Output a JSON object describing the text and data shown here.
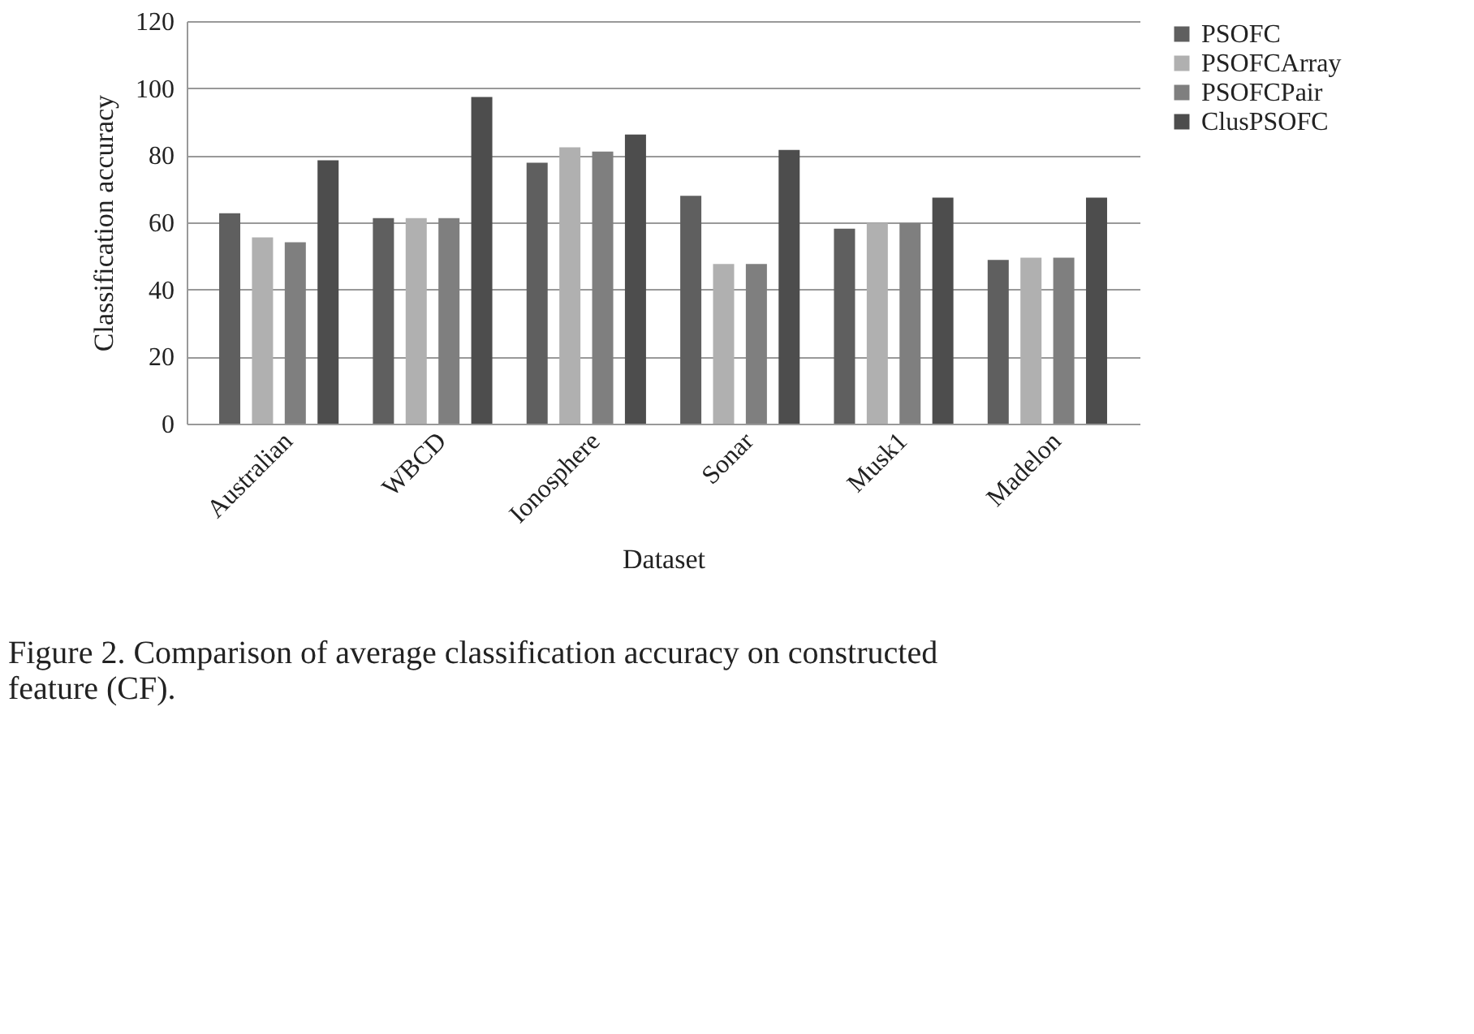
{
  "chart_data": {
    "type": "bar",
    "categories": [
      "Australian",
      "WBCD",
      "Ionosphere",
      "Sonar",
      "Musk1",
      "Madelon"
    ],
    "series": [
      {
        "name": "PSOFC",
        "color": "#5f5f5f",
        "values": [
          62.7,
          61.3,
          77.8,
          67.9,
          58.1,
          48.8
        ]
      },
      {
        "name": "PSOFCArray",
        "color": "#b0b0b0",
        "values": [
          55.5,
          61.3,
          82.4,
          47.6,
          59.8,
          49.5
        ]
      },
      {
        "name": "PSOFCPair",
        "color": "#7f7f7f",
        "values": [
          54.1,
          61.3,
          81.1,
          47.6,
          59.8,
          49.5
        ]
      },
      {
        "name": "ClusPSOFC",
        "color": "#4d4d4d",
        "values": [
          78.5,
          97.4,
          86.2,
          81.6,
          67.4,
          67.4
        ]
      }
    ],
    "xlabel": "Dataset",
    "ylabel": "Classification  accuracy",
    "ylim": [
      0,
      120
    ],
    "yticks": [
      0,
      20,
      40,
      60,
      80,
      100,
      120
    ],
    "grid": "y",
    "legend": "right",
    "annotations": [
      "Figure 2. Comparison of average classification accuracy on constructed",
      "feature (CF)."
    ]
  }
}
